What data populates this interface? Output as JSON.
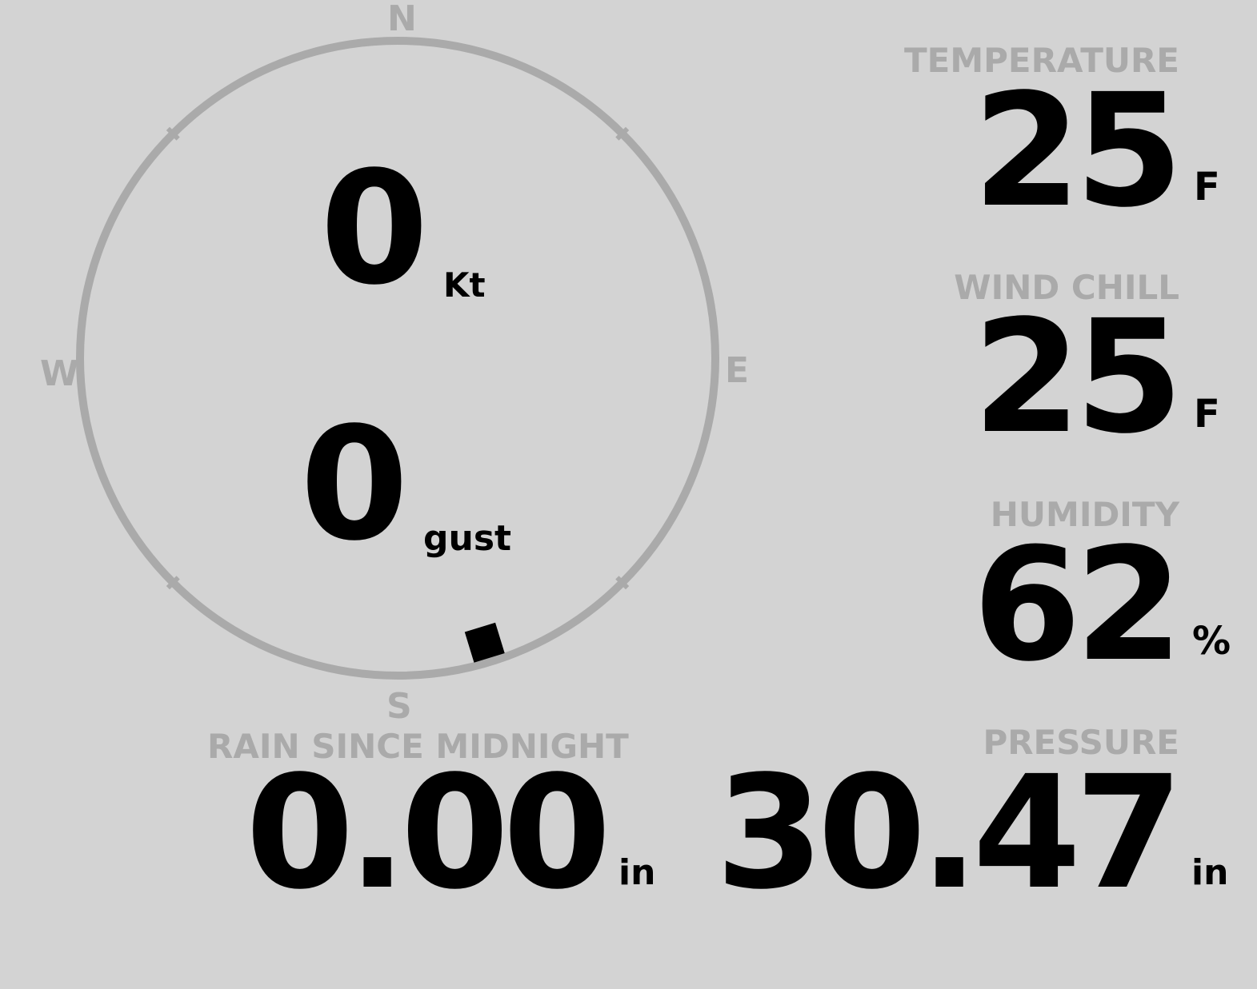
{
  "compass": {
    "north": "N",
    "east": "E",
    "south": "S",
    "west": "W",
    "wind_direction_deg": 163,
    "ring_color": "#aaaaaa",
    "marker_color": "#000000"
  },
  "wind": {
    "speed": "0",
    "speed_unit": "Kt",
    "gust": "0",
    "gust_unit": "gust"
  },
  "temperature": {
    "label": "TEMPERATURE",
    "value": "25",
    "unit": "F"
  },
  "wind_chill": {
    "label": "WIND CHILL",
    "value": "25",
    "unit": "F"
  },
  "humidity": {
    "label": "HUMIDITY",
    "value": "62",
    "unit": "%"
  },
  "pressure": {
    "label": "PRESSURE",
    "value": "30.47",
    "unit": "in"
  },
  "rain": {
    "label": "RAIN SINCE MIDNIGHT",
    "value": "0.00",
    "unit": "in"
  },
  "colors": {
    "background": "#d3d3d3",
    "label": "#aaaaaa",
    "value": "#000000"
  }
}
